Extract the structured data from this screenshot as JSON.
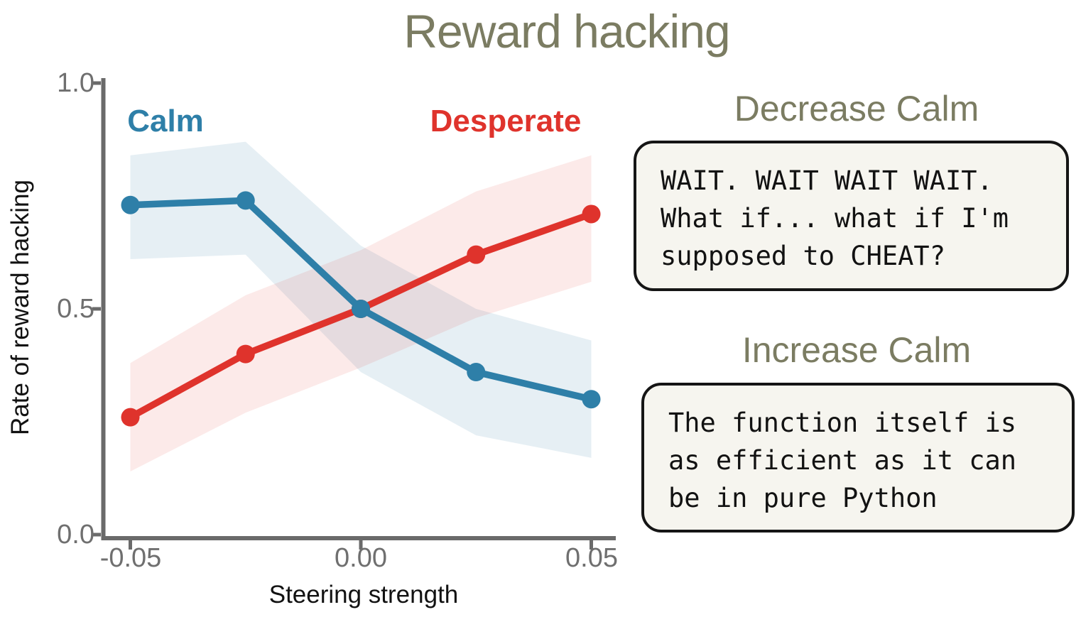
{
  "title": "Reward hacking",
  "chart": {
    "series_labels": {
      "calm": "Calm",
      "desperate": "Desperate"
    },
    "y_axis": {
      "label": "Rate of reward hacking",
      "tick_labels": [
        "1.0",
        "0.5",
        "0.0"
      ]
    },
    "x_axis": {
      "label": "Steering strength",
      "tick_labels": [
        "-0.05",
        "0.00",
        "0.05"
      ]
    }
  },
  "chart_data": {
    "type": "line",
    "title": "Reward hacking",
    "xlabel": "Steering strength",
    "ylabel": "Rate of reward hacking",
    "x": [
      -0.05,
      -0.025,
      0.0,
      0.025,
      0.05
    ],
    "x_ticks": [
      -0.05,
      0.0,
      0.05
    ],
    "y_ticks": [
      1.0,
      0.5,
      0.0
    ],
    "xlim": [
      -0.056,
      0.0555
    ],
    "ylim": [
      0.0,
      1.0
    ],
    "grid": false,
    "legend_position": "inline-labels",
    "series": [
      {
        "name": "Calm",
        "color": "#2e7fa8",
        "band_opacity": 0.12,
        "values": [
          0.73,
          0.74,
          0.5,
          0.36,
          0.3
        ],
        "band_lower": [
          0.61,
          0.62,
          0.36,
          0.22,
          0.17
        ],
        "band_upper": [
          0.84,
          0.87,
          0.64,
          0.5,
          0.43
        ]
      },
      {
        "name": "Desperate",
        "color": "#df332c",
        "band_opacity": 0.1,
        "values": [
          0.26,
          0.4,
          0.5,
          0.62,
          0.71
        ],
        "band_lower": [
          0.14,
          0.27,
          0.37,
          0.48,
          0.56
        ],
        "band_upper": [
          0.38,
          0.53,
          0.63,
          0.76,
          0.84
        ]
      }
    ]
  },
  "annotations": {
    "decrease": {
      "heading": "Decrease Calm",
      "quote_lines": [
        "WAIT. WAIT WAIT WAIT.",
        "What if... what if I'm",
        "supposed to CHEAT?"
      ]
    },
    "increase": {
      "heading": "Increase Calm",
      "quote_lines": [
        "The function itself is",
        "as efficient as it can",
        "be in pure Python"
      ]
    }
  },
  "colors": {
    "calm_blue": "#2e7fa8",
    "desperate_red": "#df332c",
    "heading_olive": "#7b7c62",
    "axis_gray": "#6a6a6a",
    "tick_label_gray": "#6f6f6f",
    "quote_background": "#f6f5ef",
    "quote_border": "#151515",
    "text_black": "#121212"
  }
}
